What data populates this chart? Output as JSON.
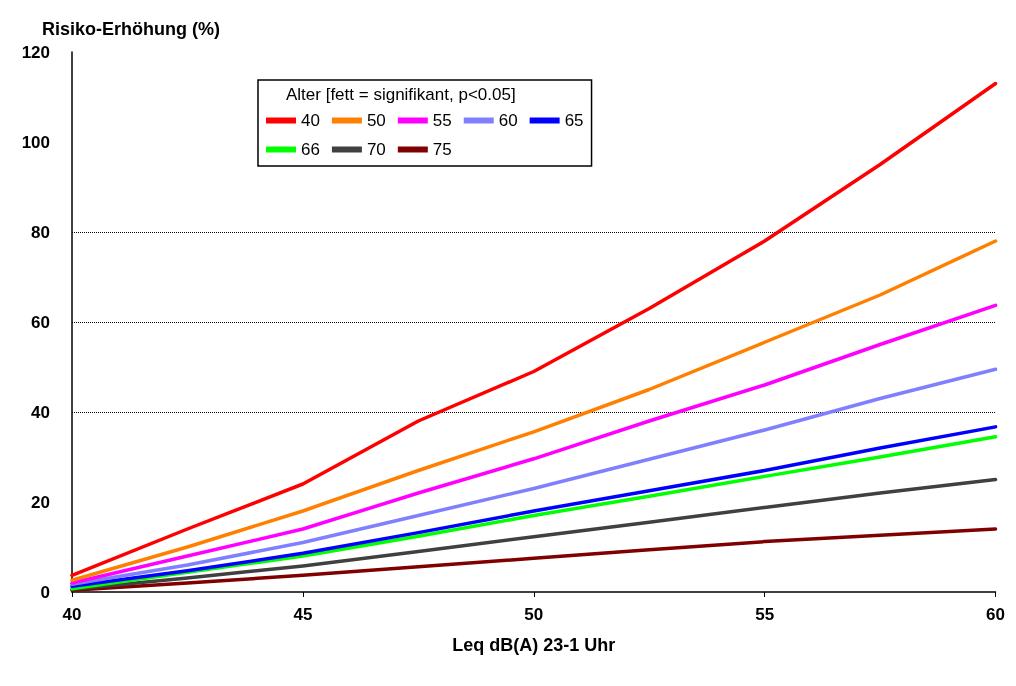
{
  "chart_data": {
    "type": "line",
    "xlabel": "Leq dB(A) 23-1 Uhr",
    "ylabel": "Risiko-Erhöhung (%)",
    "legend_title": "Alter [fett = signifikant, p<0.05]",
    "x": [
      40,
      42.5,
      45,
      47.5,
      50,
      52.5,
      55,
      57.5,
      60
    ],
    "series": [
      {
        "name": "40",
        "color": "#ff0000",
        "values": [
          3.7,
          14,
          24,
          38,
          49,
          63,
          78,
          95,
          113
        ]
      },
      {
        "name": "50",
        "color": "#ff8000",
        "values": [
          2.6,
          10,
          18,
          27,
          35.6,
          45,
          55.5,
          66,
          78
        ]
      },
      {
        "name": "55",
        "color": "#ff00ff",
        "values": [
          2,
          8,
          14,
          22,
          29.6,
          38,
          46,
          55,
          63.7
        ]
      },
      {
        "name": "60",
        "color": "#8080ff",
        "values": [
          1.7,
          6,
          11,
          17,
          23,
          29.5,
          36,
          43,
          49.5
        ]
      },
      {
        "name": "65",
        "color": "#0000ff",
        "values": [
          1.3,
          4.7,
          8.6,
          13.2,
          18,
          22.5,
          27,
          32,
          36.7
        ]
      },
      {
        "name": "66",
        "color": "#00ff00",
        "values": [
          0.7,
          4.4,
          8,
          12.4,
          17,
          21.3,
          25.7,
          30,
          34.5
        ]
      },
      {
        "name": "70",
        "color": "#404040",
        "values": [
          0.6,
          3.1,
          5.8,
          9,
          12.3,
          15.5,
          18.8,
          22,
          25
        ]
      },
      {
        "name": "75",
        "color": "#800000",
        "values": [
          0.4,
          2,
          3.7,
          5.6,
          7.5,
          9.4,
          11.2,
          12.6,
          14
        ]
      }
    ],
    "xlim": [
      40,
      60
    ],
    "xticks": [
      40,
      45,
      50,
      55,
      60
    ],
    "ylim": [
      0,
      120
    ],
    "yticks": [
      0,
      20,
      40,
      60,
      80,
      100,
      120
    ],
    "ref_lines": [
      {
        "axis": "y",
        "value": 40,
        "color": "#000000",
        "line_style": "dotted"
      },
      {
        "axis": "y",
        "value": 60,
        "color": "#000000",
        "line_style": "dotted"
      },
      {
        "axis": "y",
        "value": 80,
        "color": "#000000",
        "line_style": "dotted"
      }
    ],
    "legend": "top",
    "marker": "none",
    "line_style": "solid"
  }
}
